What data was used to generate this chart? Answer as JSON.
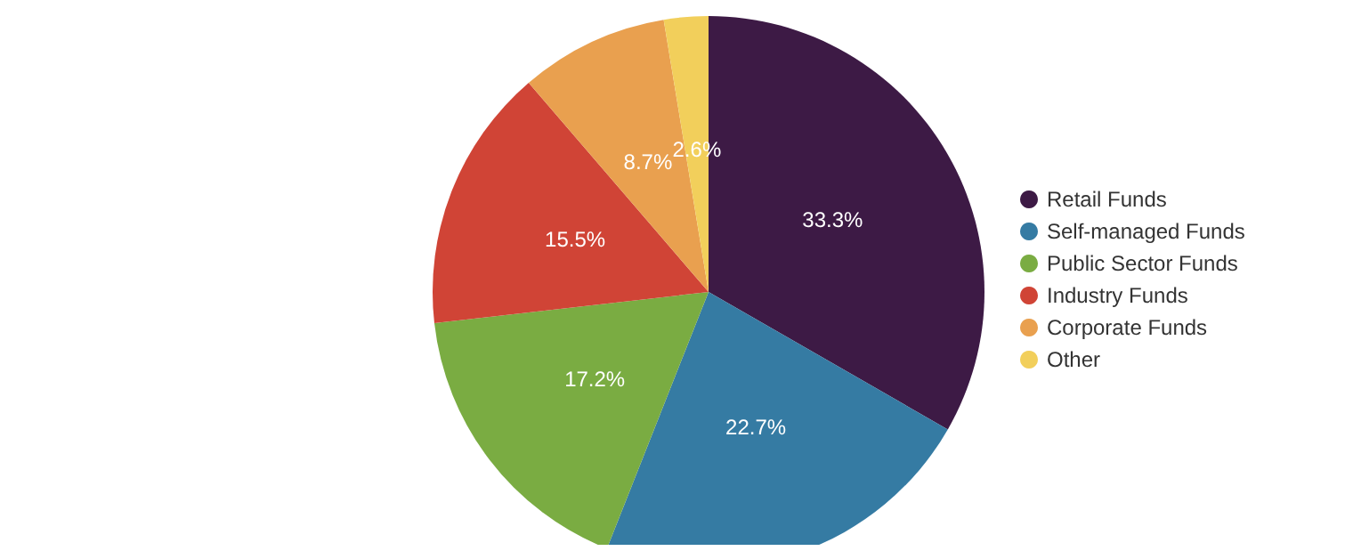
{
  "chart_data": {
    "type": "pie",
    "categories": [
      "Retail Funds",
      "Self-managed Funds",
      "Public Sector Funds",
      "Industry Funds",
      "Corporate Funds",
      "Other"
    ],
    "values": [
      33.3,
      22.7,
      17.2,
      15.5,
      8.7,
      2.6
    ],
    "colors": [
      "#3d1a45",
      "#357ba3",
      "#7aac42",
      "#d04436",
      "#e9a04f",
      "#f2cf5b"
    ],
    "value_labels": [
      "33.3%",
      "22.7%",
      "17.2%",
      "15.5%",
      "8.7%",
      "2.6%"
    ],
    "legend": "right"
  }
}
